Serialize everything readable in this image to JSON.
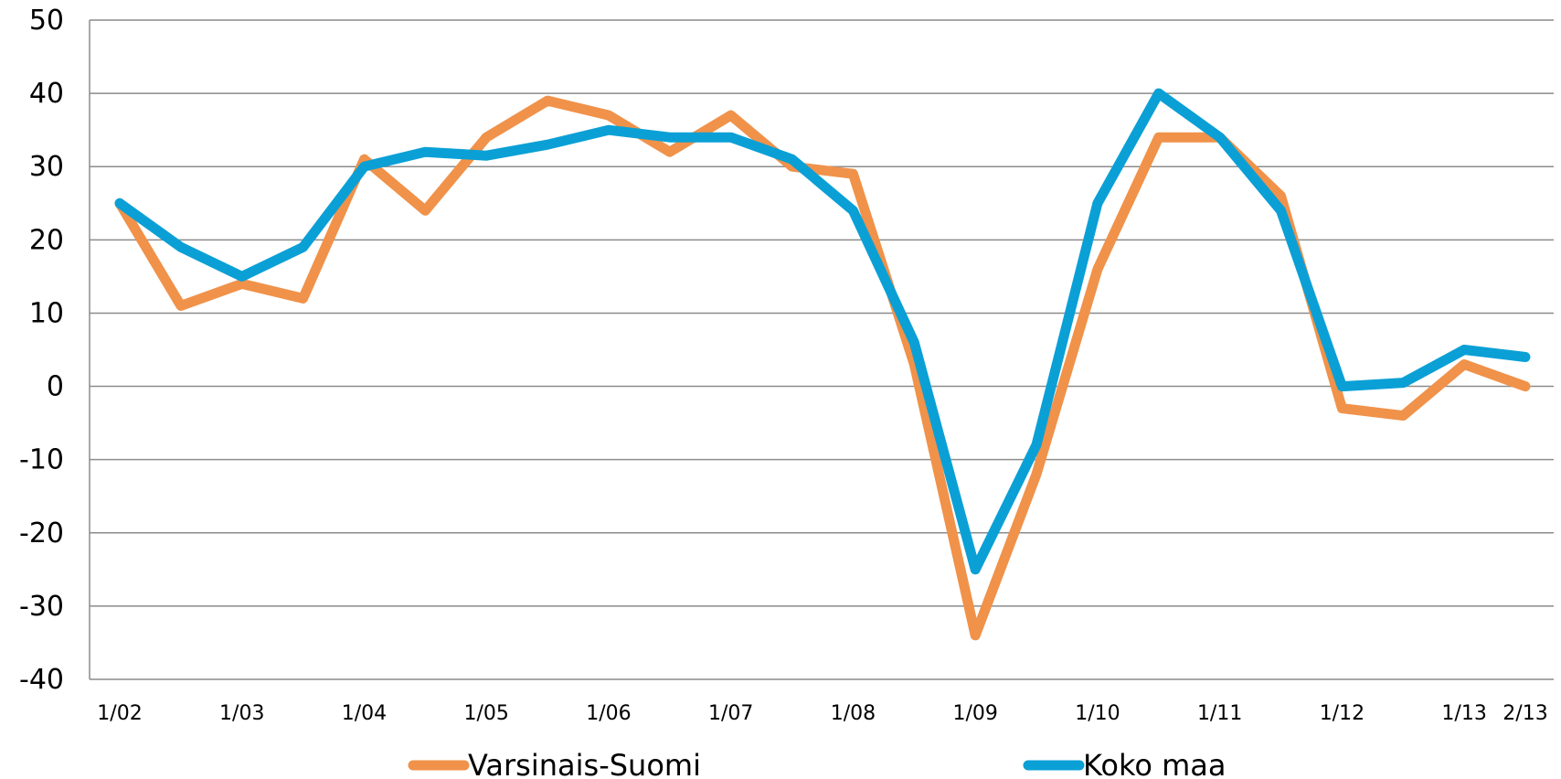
{
  "chart_data": {
    "type": "line",
    "title": "",
    "xlabel": "",
    "ylabel": "",
    "ylim": [
      -40,
      50
    ],
    "yticks": [
      50,
      40,
      30,
      20,
      10,
      0,
      -10,
      -20,
      -30,
      -40
    ],
    "ytick_labels": [
      "50",
      "40",
      "30",
      "20",
      "10",
      "0",
      "-10",
      "-20",
      "-30",
      "-40"
    ],
    "grid": "horizontal",
    "legend_position": "bottom",
    "x_tick_labels": [
      "1/02",
      "1/03",
      "1/04",
      "1/05",
      "1/06",
      "1/07",
      "1/08",
      "1/09",
      "1/10",
      "1/11",
      "1/12",
      "1/13",
      "2/13"
    ],
    "x_tick_points": [
      0,
      2,
      4,
      6,
      8,
      10,
      12,
      14,
      16,
      18,
      20,
      22,
      23
    ],
    "series": [
      {
        "name": "Varsinais-Suomi",
        "color": "#F0924A",
        "values": [
          25,
          11,
          14,
          12,
          31,
          24,
          34,
          39,
          37,
          32,
          37,
          30,
          29,
          3,
          -34,
          -12,
          16,
          34,
          34,
          26,
          -3,
          -4,
          3,
          0
        ]
      },
      {
        "name": "Koko maa",
        "color": "#0AA0D6",
        "values": [
          25,
          19,
          15,
          19,
          30,
          32,
          31.5,
          33,
          35,
          34,
          34,
          31,
          24,
          6,
          -25,
          -8,
          25,
          40,
          34,
          24,
          0,
          0.5,
          5,
          4
        ]
      }
    ]
  }
}
